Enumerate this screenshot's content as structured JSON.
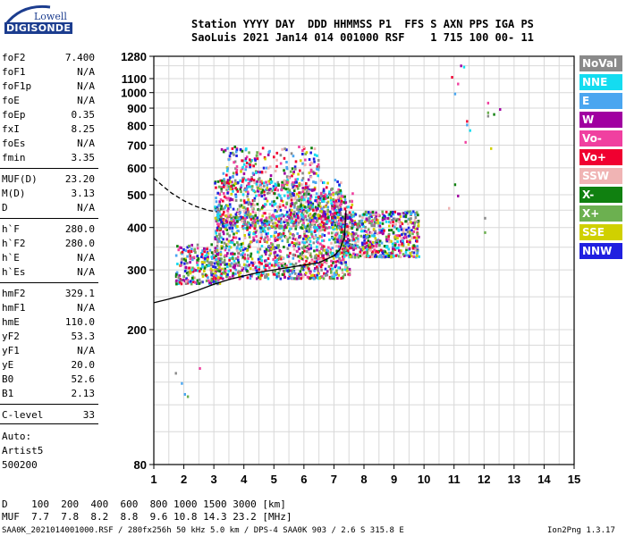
{
  "logo": {
    "line1": "Lowell",
    "line2": "DIGISONDE"
  },
  "header": {
    "line1": "Station YYYY DAY  DDD HHMMSS P1  FFS S AXN PPS IGA PS",
    "line2": "SaoLuis 2021 Jan14 014 001000 RSF    1 715 100 00- 11"
  },
  "params": [
    {
      "k": "foF2",
      "v": "7.400"
    },
    {
      "k": "foF1",
      "v": "N/A"
    },
    {
      "k": "foF1p",
      "v": "N/A"
    },
    {
      "k": "foE",
      "v": "N/A"
    },
    {
      "k": "foEp",
      "v": "0.35"
    },
    {
      "k": "fxI",
      "v": "8.25"
    },
    {
      "k": "foEs",
      "v": "N/A"
    },
    {
      "k": "fmin",
      "v": "3.35"
    },
    {
      "k": "MUF(D)",
      "v": "23.20"
    },
    {
      "k": "M(D)",
      "v": "3.13"
    },
    {
      "k": "D",
      "v": "N/A"
    },
    {
      "k": "h`F",
      "v": "280.0"
    },
    {
      "k": "h`F2",
      "v": "280.0"
    },
    {
      "k": "h`E",
      "v": "N/A"
    },
    {
      "k": "h`Es",
      "v": "N/A"
    },
    {
      "k": "hmF2",
      "v": "329.1"
    },
    {
      "k": "hmF1",
      "v": "N/A"
    },
    {
      "k": "hmE",
      "v": "110.0"
    },
    {
      "k": "yF2",
      "v": "53.3"
    },
    {
      "k": "yF1",
      "v": "N/A"
    },
    {
      "k": "yE",
      "v": "20.0"
    },
    {
      "k": "B0",
      "v": "52.6"
    },
    {
      "k": "B1",
      "v": "2.13"
    },
    {
      "k": "C-level",
      "v": "33"
    }
  ],
  "auto": [
    "Auto:",
    "Artist5",
    "500200"
  ],
  "legend": [
    {
      "label": "NoVal",
      "color": "#8a8a8a"
    },
    {
      "label": "NNE",
      "color": "#14dcf0"
    },
    {
      "label": "E",
      "color": "#4aa6f0"
    },
    {
      "label": "W",
      "color": "#a000a0"
    },
    {
      "label": "Vo-",
      "color": "#f040a0"
    },
    {
      "label": "Vo+",
      "color": "#f00030"
    },
    {
      "label": "SSW",
      "color": "#f0b4b4"
    },
    {
      "label": "X-",
      "color": "#108010"
    },
    {
      "label": "X+",
      "color": "#6cb050"
    },
    {
      "label": "SSE",
      "color": "#d0d000"
    },
    {
      "label": "NNW",
      "color": "#2020e0"
    }
  ],
  "muf_table": {
    "line1": "D    100  200  400  600  800 1000 1500 3000 [km]",
    "line2": "MUF  7.7  7.8  8.2  8.8  9.6 10.8 14.3 23.2 [MHz]"
  },
  "footer": {
    "left": "SAA0K_2021014001000.RSF / 280fx256h 50 kHz 5.0 km / DPS-4 SAA0K 903 / 2.6 S 315.8 E",
    "right": "Ion2Png 1.3.17"
  },
  "chart_data": {
    "type": "scatter",
    "title": "",
    "xlabel": "",
    "ylabel": "",
    "x_ticks": [
      1,
      2,
      3,
      4,
      5,
      6,
      7,
      8,
      9,
      10,
      11,
      12,
      13,
      14,
      15
    ],
    "y_ticks": [
      80,
      200,
      300,
      400,
      500,
      600,
      700,
      800,
      900,
      1000,
      1100,
      1280
    ],
    "xlim": [
      1,
      15
    ],
    "ylim": [
      80,
      1280
    ],
    "y_scale": "log",
    "grid": true,
    "traces": [
      {
        "name": "",
        "style": "solid",
        "x": [
          1.0,
          1.5,
          2.0,
          2.5,
          3.0,
          3.5,
          4.0,
          4.5,
          5.0,
          5.5,
          6.0,
          6.5,
          7.0,
          7.2,
          7.35,
          7.4
        ],
        "y": [
          240,
          246,
          253,
          262,
          272,
          281,
          288,
          295,
          300,
          305,
          310,
          315,
          330,
          345,
          375,
          450
        ]
      },
      {
        "name": "",
        "style": "dashed",
        "x": [
          1.0,
          1.3,
          1.6,
          2.0,
          2.4,
          2.8,
          3.1
        ],
        "y": [
          560,
          530,
          505,
          480,
          462,
          450,
          445
        ]
      }
    ],
    "sparse_echoes": [
      [
        11.1,
        1070
      ],
      [
        10.9,
        1120
      ],
      [
        11.3,
        1200
      ],
      [
        11.2,
        1210
      ],
      [
        11.0,
        1000
      ],
      [
        12.1,
        940
      ],
      [
        12.1,
        880
      ],
      [
        12.5,
        900
      ],
      [
        12.3,
        870
      ],
      [
        11.4,
        830
      ],
      [
        11.4,
        810
      ],
      [
        11.35,
        720
      ],
      [
        12.2,
        690
      ],
      [
        12.1,
        860
      ],
      [
        11.5,
        780
      ],
      [
        11.0,
        540
      ],
      [
        11.1,
        500
      ],
      [
        10.8,
        460
      ],
      [
        12.0,
        430
      ],
      [
        12.0,
        390
      ],
      [
        1.9,
        140
      ],
      [
        2.0,
        130
      ],
      [
        2.1,
        128
      ],
      [
        1.7,
        150
      ],
      [
        2.5,
        155
      ]
    ],
    "point_colors": [
      "#f040a0",
      "#f00030",
      "#a000a0",
      "#4aa6f0",
      "#d0d000",
      "#108010",
      "#6cb050",
      "#2020e0",
      "#f0b4b4",
      "#14dcf0",
      "#8a8a8a"
    ]
  }
}
